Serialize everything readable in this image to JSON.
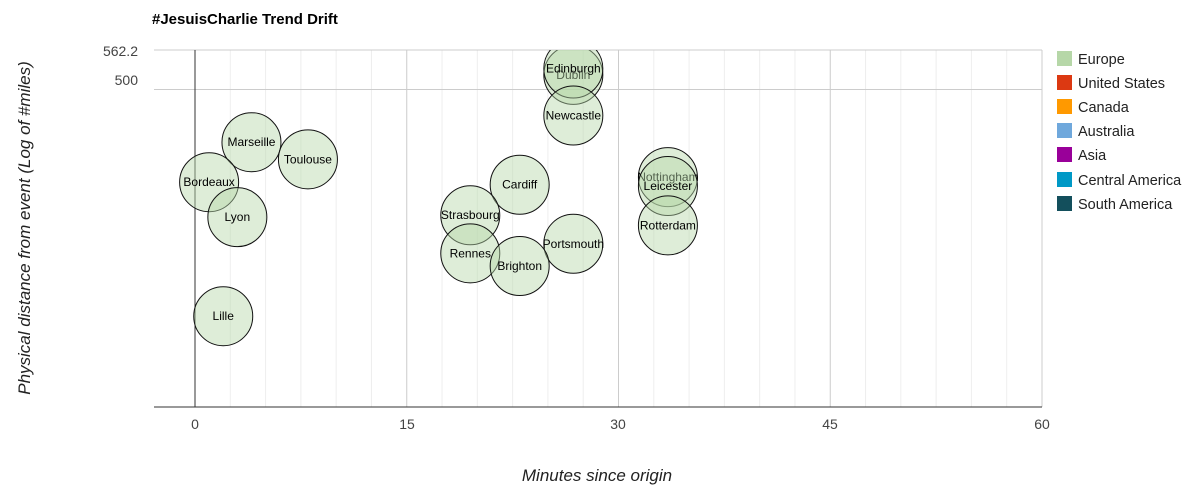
{
  "chart_data": {
    "type": "bubble",
    "title": "#JesuisCharlie Trend Drift",
    "xlabel": "Minutes since origin",
    "ylabel": "Physical distance from event (Log of #miles)",
    "x_ticks": [
      "0",
      "15",
      "30",
      "45",
      "60"
    ],
    "y_ticks": [
      "562.2",
      "500"
    ],
    "xlim": [
      0,
      60
    ],
    "ylim": [
      0,
      562.2
    ],
    "legend_position": "right",
    "legend": [
      {
        "name": "Europe",
        "color": "#b6d7a8"
      },
      {
        "name": "United States",
        "color": "#dc3912"
      },
      {
        "name": "Canada",
        "color": "#ff9900"
      },
      {
        "name": "Australia",
        "color": "#6fa8dc"
      },
      {
        "name": "Asia",
        "color": "#990099"
      },
      {
        "name": "Central America",
        "color": "#0099c6"
      },
      {
        "name": "South America",
        "color": "#134f5c"
      }
    ],
    "points": [
      {
        "label": "Dublin",
        "x": 26.8,
        "y": 523,
        "group": "Europe"
      },
      {
        "label": "Edinburgh",
        "x": 26.8,
        "y": 533,
        "group": "Europe"
      },
      {
        "label": "Newcastle",
        "x": 26.8,
        "y": 459,
        "group": "Europe"
      },
      {
        "label": "Marseille",
        "x": 4.0,
        "y": 417,
        "group": "Europe"
      },
      {
        "label": "Toulouse",
        "x": 8.0,
        "y": 390,
        "group": "Europe"
      },
      {
        "label": "Bordeaux",
        "x": 1.0,
        "y": 354,
        "group": "Europe"
      },
      {
        "label": "Cardiff",
        "x": 23.0,
        "y": 350,
        "group": "Europe"
      },
      {
        "label": "Nottingham",
        "x": 33.5,
        "y": 362,
        "group": "Europe"
      },
      {
        "label": "Leicester",
        "x": 33.5,
        "y": 348,
        "group": "Europe"
      },
      {
        "label": "Lyon",
        "x": 3.0,
        "y": 299,
        "group": "Europe"
      },
      {
        "label": "Strasbourg",
        "x": 19.5,
        "y": 302,
        "group": "Europe"
      },
      {
        "label": "Rotterdam",
        "x": 33.5,
        "y": 286,
        "group": "Europe"
      },
      {
        "label": "Portsmouth",
        "x": 26.8,
        "y": 257,
        "group": "Europe"
      },
      {
        "label": "Rennes",
        "x": 19.5,
        "y": 242,
        "group": "Europe"
      },
      {
        "label": "Brighton",
        "x": 23.0,
        "y": 222,
        "group": "Europe"
      },
      {
        "label": "Lille",
        "x": 2.0,
        "y": 143,
        "group": "Europe"
      }
    ]
  }
}
